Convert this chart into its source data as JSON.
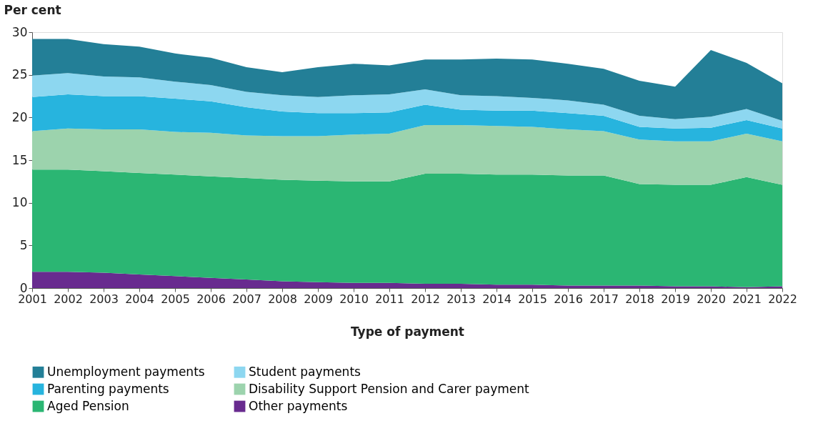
{
  "chart_data": {
    "type": "area",
    "stacked": true,
    "xlabel": "Type of payment",
    "ylabel": "Per cent",
    "categories": [
      "2001",
      "2002",
      "2003",
      "2004",
      "2005",
      "2006",
      "2007",
      "2008",
      "2009",
      "2010",
      "2011",
      "2012",
      "2013",
      "2014",
      "2015",
      "2016",
      "2017",
      "2018",
      "2019",
      "2020",
      "2021",
      "2022"
    ],
    "ylim": [
      0,
      30
    ],
    "yticks": [
      0,
      5,
      10,
      15,
      20,
      25,
      30
    ],
    "grid": false,
    "legend": "bottom",
    "series": [
      {
        "name": "Other payments",
        "color": "#682b8f",
        "values": [
          1.9,
          1.9,
          1.8,
          1.6,
          1.4,
          1.2,
          1.0,
          0.8,
          0.7,
          0.6,
          0.6,
          0.5,
          0.5,
          0.4,
          0.4,
          0.3,
          0.3,
          0.3,
          0.2,
          0.2,
          0.1,
          0.2
        ]
      },
      {
        "name": "Aged Pension",
        "color": "#2bb673",
        "values": [
          12.0,
          12.0,
          11.9,
          11.9,
          11.9,
          11.9,
          11.9,
          11.9,
          11.9,
          11.9,
          11.9,
          12.9,
          12.9,
          12.9,
          12.9,
          12.9,
          12.9,
          11.9,
          11.9,
          11.9,
          12.9,
          11.9
        ]
      },
      {
        "name": "Disability Support Pension and Carer payment",
        "color": "#9cd3ad",
        "values": [
          4.5,
          4.8,
          4.9,
          5.1,
          5.0,
          5.1,
          5.0,
          5.1,
          5.2,
          5.5,
          5.6,
          5.7,
          5.7,
          5.7,
          5.6,
          5.4,
          5.2,
          5.2,
          5.1,
          5.1,
          5.1,
          5.1
        ]
      },
      {
        "name": "Parenting payments",
        "color": "#27b4de",
        "values": [
          4.0,
          4.0,
          3.9,
          3.9,
          3.9,
          3.7,
          3.3,
          2.9,
          2.7,
          2.5,
          2.5,
          2.4,
          1.8,
          1.8,
          1.9,
          1.9,
          1.8,
          1.5,
          1.5,
          1.6,
          1.6,
          1.5
        ]
      },
      {
        "name": "Student payments",
        "color": "#8dd7f0",
        "values": [
          2.5,
          2.5,
          2.3,
          2.2,
          2.0,
          1.9,
          1.8,
          1.9,
          1.9,
          2.1,
          2.1,
          1.8,
          1.7,
          1.7,
          1.5,
          1.5,
          1.3,
          1.3,
          1.1,
          1.3,
          1.3,
          0.9
        ]
      },
      {
        "name": "Unemployment payments",
        "color": "#237f97",
        "values": [
          4.3,
          4.0,
          3.8,
          3.6,
          3.3,
          3.2,
          2.9,
          2.7,
          3.5,
          3.7,
          3.4,
          3.5,
          4.2,
          4.4,
          4.5,
          4.3,
          4.2,
          4.1,
          3.8,
          7.8,
          5.4,
          4.4
        ]
      }
    ]
  }
}
